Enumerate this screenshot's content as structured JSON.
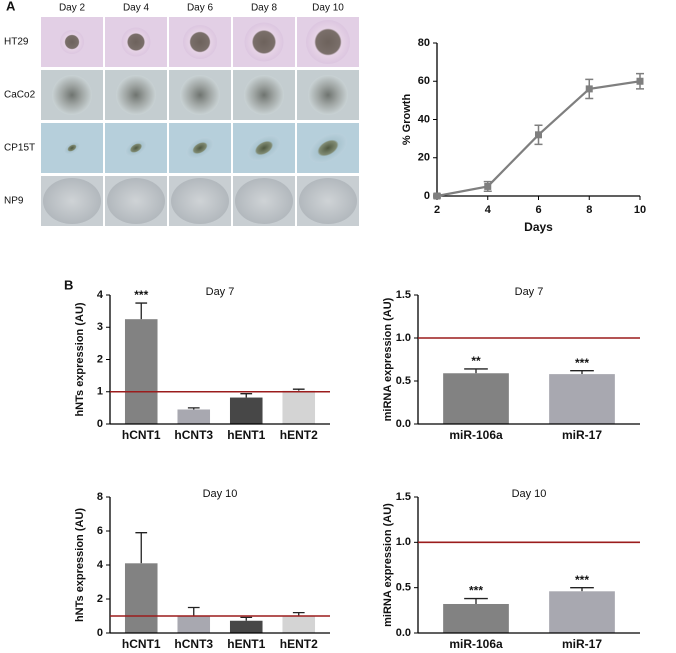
{
  "panel_labels": [
    "A",
    "B"
  ],
  "image_grid": {
    "columns": [
      "Day 2",
      "Day 4",
      "Day 6",
      "Day 8",
      "Day 10"
    ],
    "rows": [
      "HT29",
      "CaCo2",
      "CP15T",
      "NP9"
    ]
  },
  "chart_data": [
    {
      "type": "line",
      "x_label": "Days",
      "y_label": "% Growth",
      "x": [
        2,
        4,
        6,
        8,
        10
      ],
      "series": [
        {
          "name": "% Growth",
          "color": "#7f7f7f",
          "values": [
            0,
            5,
            32,
            56,
            60
          ],
          "errors": [
            1,
            2.5,
            5,
            5,
            4
          ]
        }
      ],
      "xlim": [
        2,
        10
      ],
      "xticks": [
        2,
        4,
        6,
        8,
        10
      ],
      "ylim": [
        0,
        80
      ],
      "yticks": [
        0,
        20,
        40,
        60,
        80
      ]
    },
    {
      "type": "bar",
      "title": "Day 7",
      "y_label": "hNTs expression (AU)",
      "categories": [
        "hCNT1",
        "hCNT3",
        "hENT1",
        "hENT2"
      ],
      "values": [
        3.25,
        0.45,
        0.82,
        1.03
      ],
      "errors": [
        0.5,
        0.05,
        0.12,
        0.05
      ],
      "significance": [
        "***",
        null,
        null,
        null
      ],
      "colors": [
        "#828282",
        "#a8a8b0",
        "#474747",
        "#d4d4d4"
      ],
      "reference_line": 1,
      "reference_color": "#9b1c1c",
      "ylim": [
        0,
        4
      ],
      "yticks": [
        0,
        1,
        2,
        3,
        4
      ]
    },
    {
      "type": "bar",
      "title": "Day 7",
      "y_label": "miRNA expression (AU)",
      "categories": [
        "miR-106a",
        "miR-17"
      ],
      "values": [
        0.59,
        0.58
      ],
      "errors": [
        0.05,
        0.04
      ],
      "significance": [
        "**",
        "***"
      ],
      "colors": [
        "#828282",
        "#a8a8b0"
      ],
      "reference_line": 1,
      "reference_color": "#9b1c1c",
      "ylim": [
        0,
        1.5
      ],
      "yticks": [
        {
          "value": 0,
          "label": "0.0"
        },
        0.5,
        {
          "value": 1,
          "label": "1.0"
        },
        1.5
      ]
    },
    {
      "type": "bar",
      "title": "Day 10",
      "y_label": "hNTs expression (AU)",
      "categories": [
        "hCNT1",
        "hCNT3",
        "hENT1",
        "hENT2"
      ],
      "values": [
        4.1,
        1.0,
        0.72,
        1.0
      ],
      "errors": [
        1.8,
        0.5,
        0.2,
        0.2
      ],
      "significance": [
        null,
        null,
        null,
        null
      ],
      "colors": [
        "#828282",
        "#a8a8b0",
        "#474747",
        "#d4d4d4"
      ],
      "reference_line": 1,
      "reference_color": "#9b1c1c",
      "ylim": [
        0,
        8
      ],
      "yticks": [
        0,
        2,
        4,
        6,
        8
      ]
    },
    {
      "type": "bar",
      "title": "Day 10",
      "y_label": "miRNA expression (AU)",
      "categories": [
        "miR-106a",
        "miR-17"
      ],
      "values": [
        0.32,
        0.46
      ],
      "errors": [
        0.06,
        0.04
      ],
      "significance": [
        "***",
        "***"
      ],
      "colors": [
        "#828282",
        "#a8a8b0"
      ],
      "reference_line": 1,
      "reference_color": "#9b1c1c",
      "ylim": [
        0,
        1.5
      ],
      "yticks": [
        {
          "value": 0,
          "label": "0.0"
        },
        0.5,
        {
          "value": 1,
          "label": "1.0"
        },
        1.5
      ]
    }
  ]
}
